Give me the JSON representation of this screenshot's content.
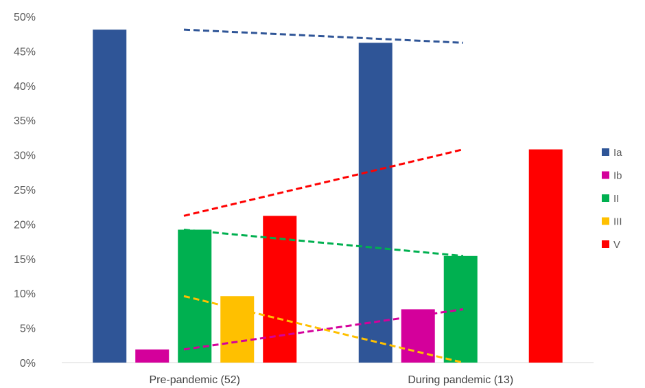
{
  "chart_data": {
    "type": "bar",
    "categories": [
      "Pre-pandemic (52)",
      "During pandemic (13)"
    ],
    "series": [
      {
        "name": "Ia",
        "color": "#2F5597",
        "values": [
          48.1,
          46.2
        ]
      },
      {
        "name": "Ib",
        "color": "#D4009B",
        "values": [
          1.9,
          7.7
        ]
      },
      {
        "name": "II",
        "color": "#00B050",
        "values": [
          19.2,
          15.4
        ]
      },
      {
        "name": "III",
        "color": "#FFC000",
        "values": [
          9.6,
          0
        ]
      },
      {
        "name": "V",
        "color": "#FF0000",
        "values": [
          21.2,
          30.8
        ]
      }
    ],
    "trendlines": "dashed line per series connecting pre-pandemic to during-pandemic values",
    "ylim": [
      0,
      50
    ],
    "yticks": [
      "0%",
      "5%",
      "10%",
      "15%",
      "20%",
      "25%",
      "30%",
      "35%",
      "40%",
      "45%",
      "50%"
    ],
    "ytick_values": [
      0,
      5,
      10,
      15,
      20,
      25,
      30,
      35,
      40,
      45,
      50
    ],
    "grid": false,
    "legend_position": "right"
  }
}
